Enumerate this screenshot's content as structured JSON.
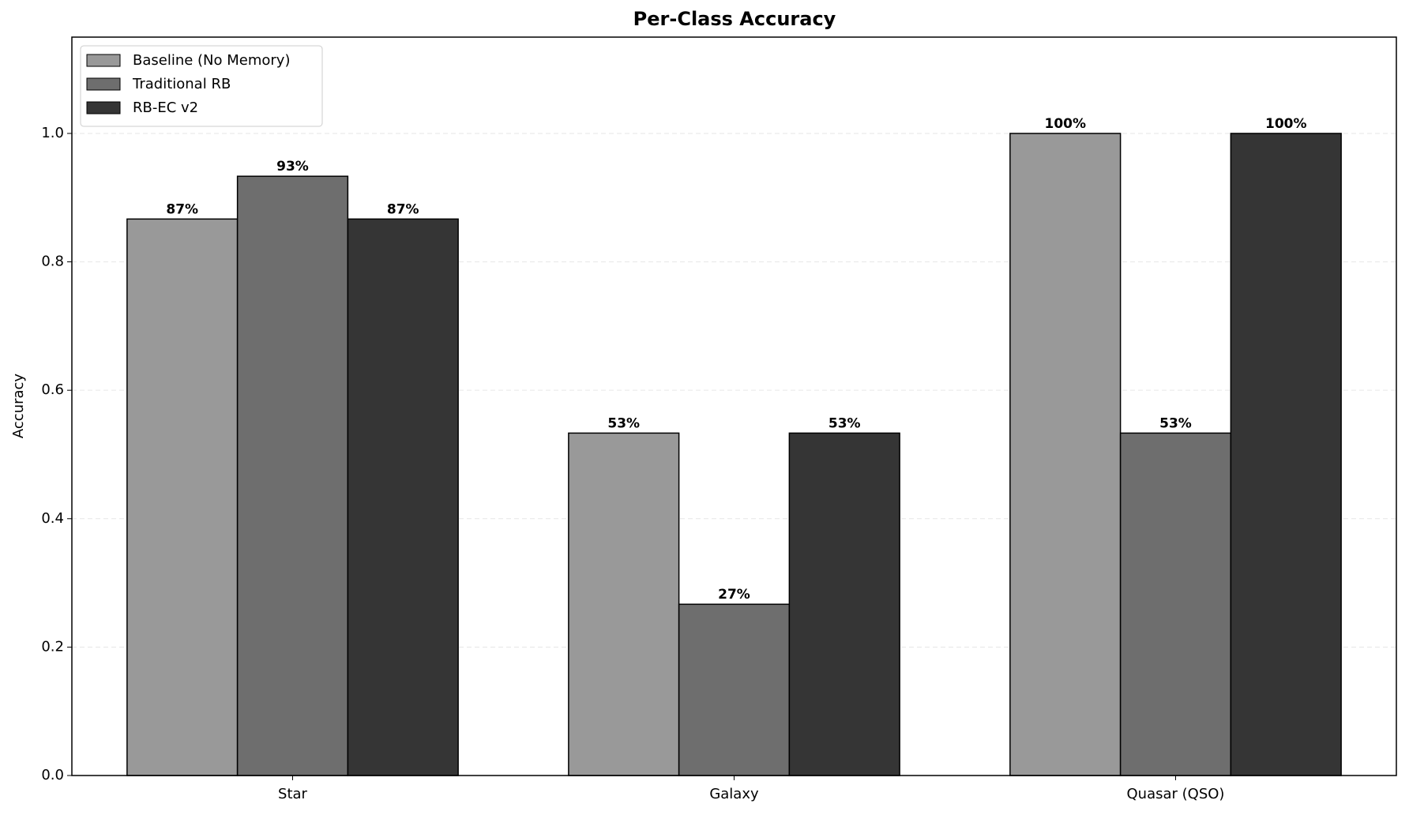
{
  "chart_data": {
    "type": "bar",
    "title": "Per-Class Accuracy",
    "y_label": "Accuracy",
    "categories": [
      "Star",
      "Galaxy",
      "Quasar (QSO)"
    ],
    "series": [
      {
        "name": "Baseline (No Memory)",
        "color": "#999999",
        "values": [
          0.8667,
          0.5333,
          1.0
        ],
        "value_labels": [
          "87%",
          "53%",
          "100%"
        ]
      },
      {
        "name": "Traditional RB",
        "color": "#6e6e6e",
        "values": [
          0.9333,
          0.2667,
          0.5333
        ],
        "value_labels": [
          "93%",
          "27%",
          "53%"
        ]
      },
      {
        "name": "RB-EC v2",
        "color": "#353535",
        "values": [
          0.8667,
          0.5333,
          1.0
        ],
        "value_labels": [
          "87%",
          "53%",
          "100%"
        ]
      }
    ],
    "ylim": [
      0,
      1.15
    ],
    "yticks": [
      {
        "value": 0,
        "label": "0.0"
      },
      0.2,
      0.4,
      0.6,
      0.8,
      {
        "value": 1,
        "label": "1.0"
      }
    ],
    "grid": true,
    "legend": "upper left"
  }
}
